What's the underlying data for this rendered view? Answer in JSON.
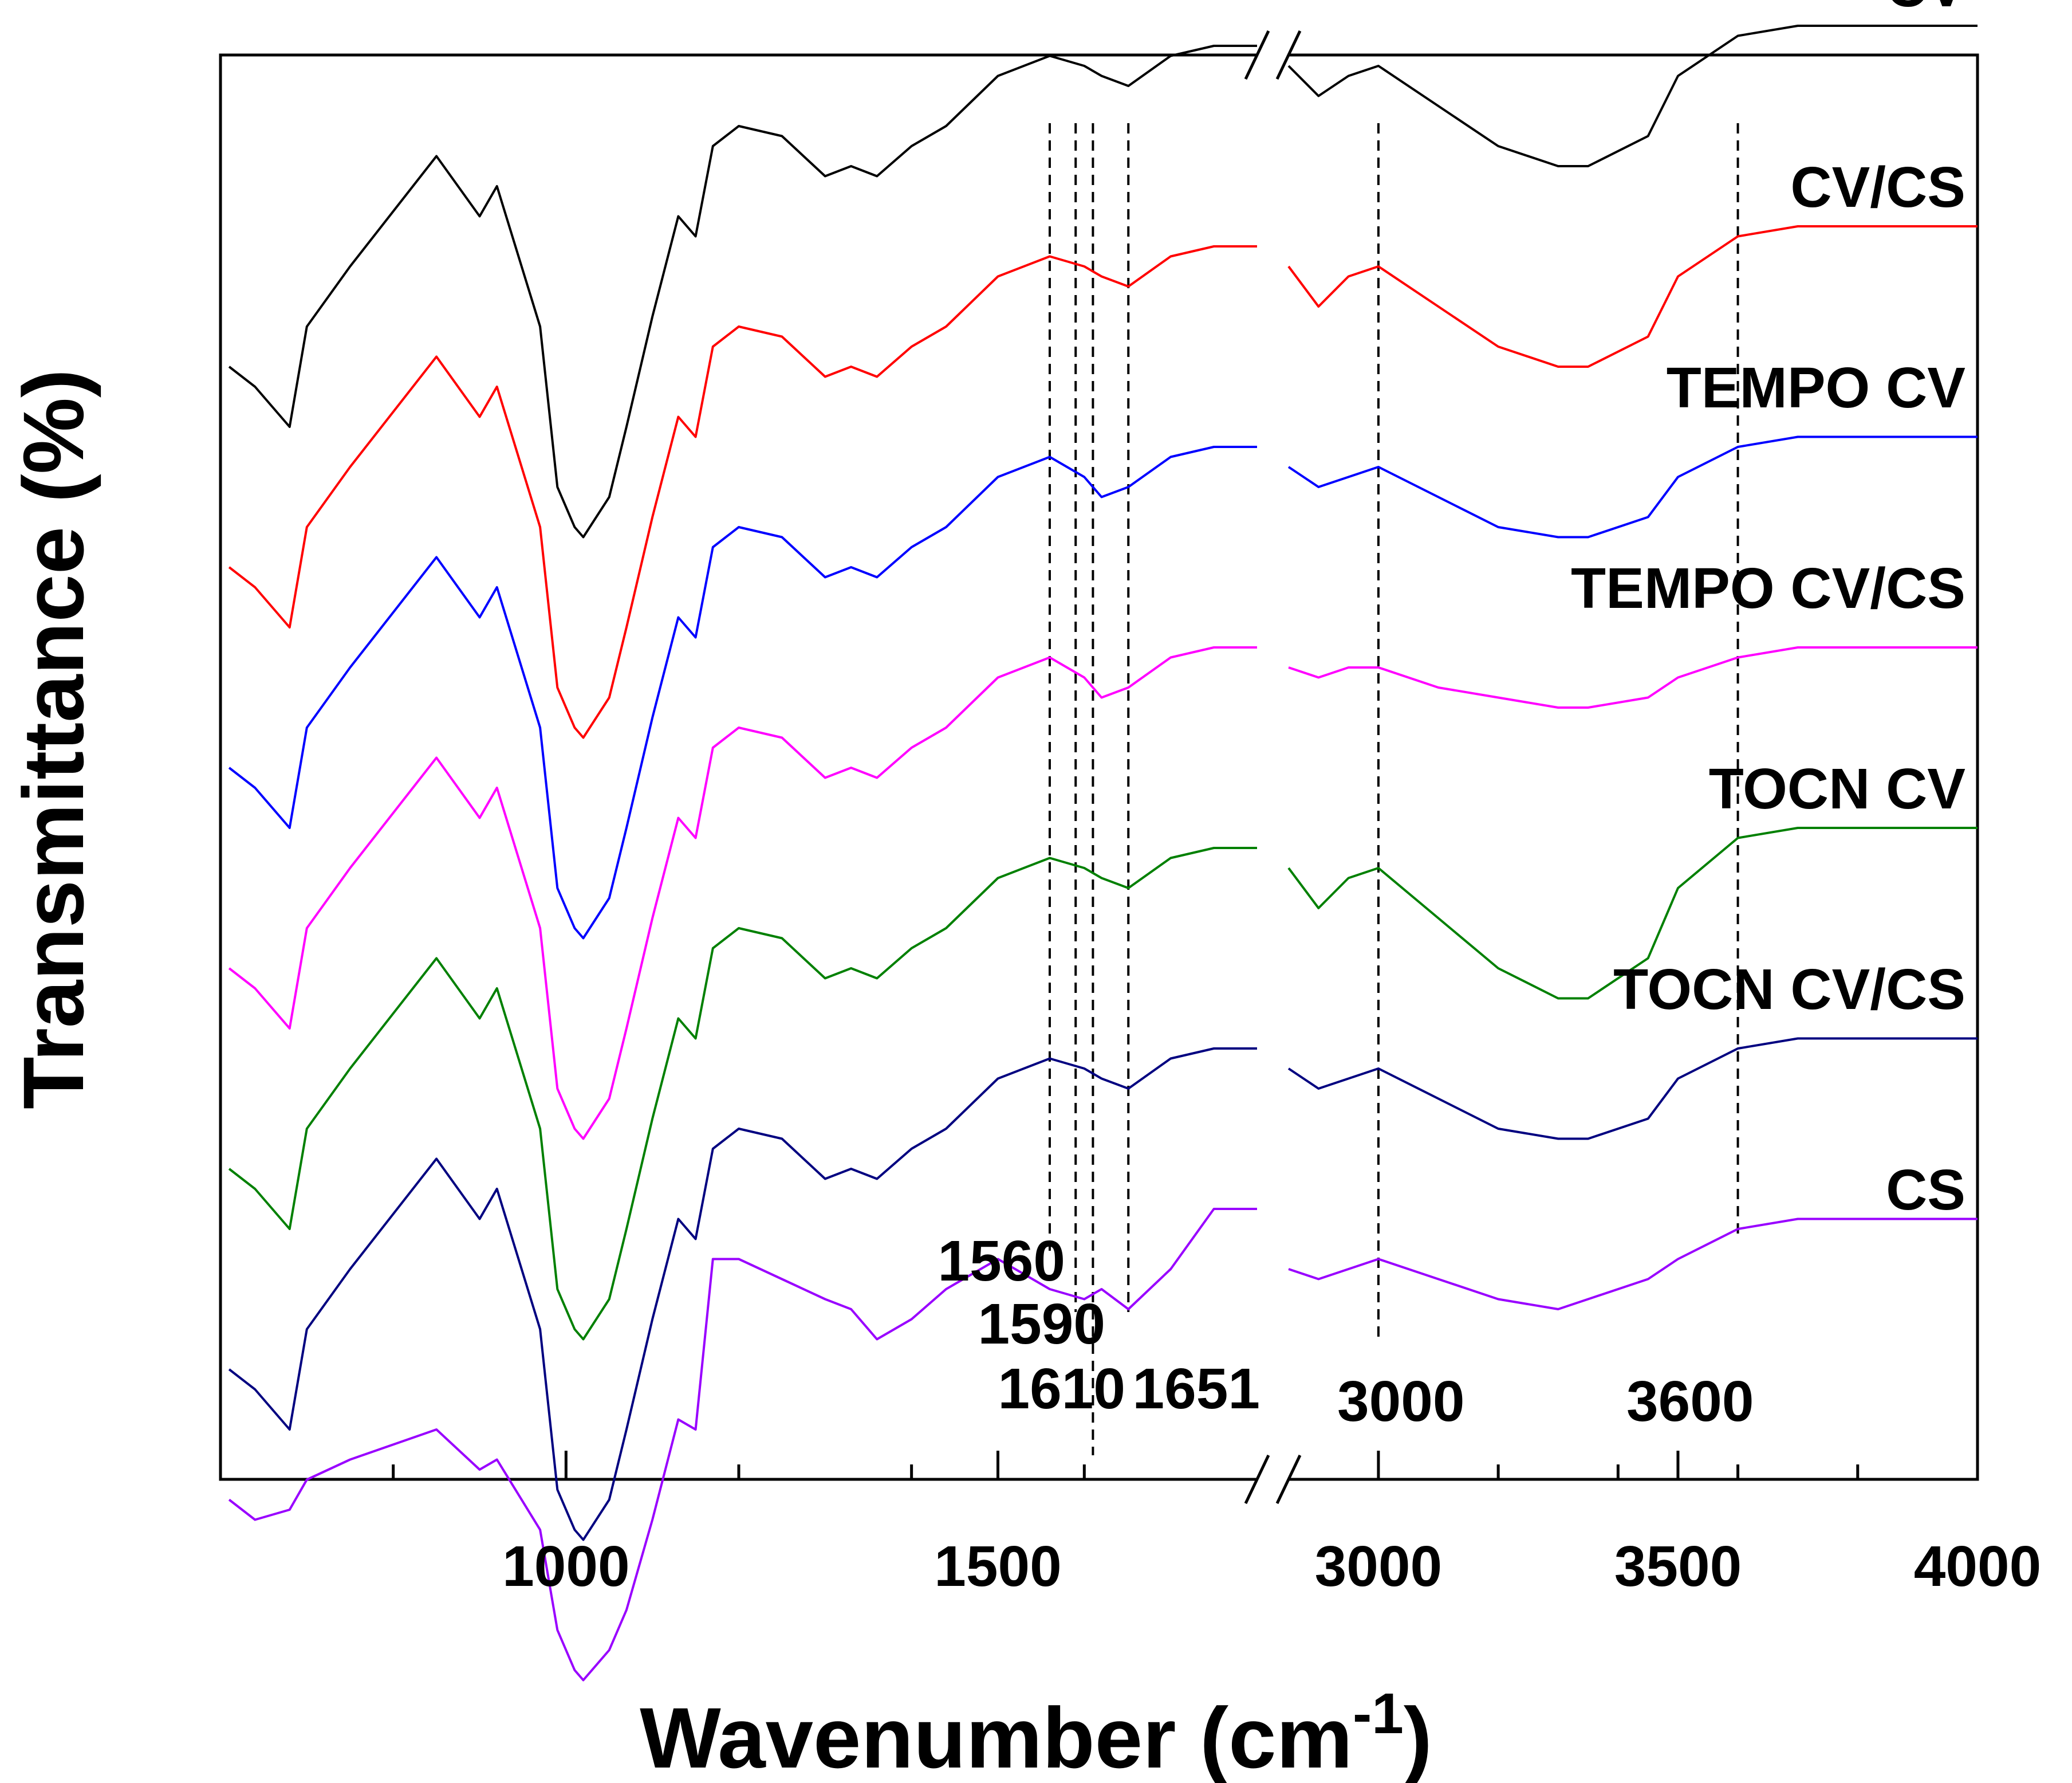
{
  "chart_data": {
    "type": "line",
    "title": "",
    "xlabel": "Wavenumber (cm",
    "xlabel_superscript": "-1",
    "xlabel_close": ")",
    "ylabel": "Transmittance (%)",
    "xlim": [
      600,
      4000
    ],
    "axis_break": [
      1800,
      2850
    ],
    "xticks": [
      1000,
      1500,
      3000,
      3500,
      4000
    ],
    "xtick_labels": [
      "1000",
      "1500",
      "3000",
      "3500",
      "4000"
    ],
    "yticks_shown": false,
    "legend": "labels placed at right end of each trace",
    "reference_lines": [
      1560,
      1590,
      1610,
      1651,
      3000,
      3600
    ],
    "reference_labels": [
      "1560",
      "1590",
      "1610",
      "1651",
      "3000",
      "3600"
    ],
    "series": [
      {
        "name": "CV",
        "color": "#000000",
        "offset": 0,
        "x": [
          610,
          640,
          680,
          700,
          750,
          850,
          900,
          920,
          970,
          990,
          1010,
          1020,
          1050,
          1070,
          1100,
          1130,
          1150,
          1170,
          1200,
          1250,
          1300,
          1330,
          1360,
          1400,
          1440,
          1500,
          1560,
          1600,
          1620,
          1651,
          1700,
          1750,
          1800,
          2850,
          2900,
          2950,
          3000,
          3100,
          3200,
          3300,
          3350,
          3450,
          3500,
          3600,
          3700,
          3800,
          3900,
          4000
        ],
        "y": [
          -2.0,
          -2.2,
          -2.6,
          -1.6,
          -1.0,
          0.1,
          -0.5,
          -0.2,
          -1.6,
          -3.2,
          -3.6,
          -3.7,
          -3.3,
          -2.6,
          -1.5,
          -0.5,
          -0.7,
          0.2,
          0.4,
          0.3,
          -0.1,
          0.0,
          -0.1,
          0.2,
          0.4,
          0.9,
          1.1,
          1.0,
          0.9,
          0.8,
          1.1,
          1.2,
          1.2,
          1.0,
          0.7,
          0.9,
          1.0,
          0.6,
          0.2,
          0.0,
          0.0,
          0.3,
          0.9,
          1.3,
          1.4,
          1.4,
          1.4,
          1.4
        ]
      },
      {
        "name": "CV/CS",
        "color": "#ff0000",
        "offset": -1,
        "x": [
          610,
          640,
          680,
          700,
          750,
          850,
          900,
          920,
          970,
          990,
          1010,
          1020,
          1050,
          1070,
          1100,
          1130,
          1150,
          1170,
          1200,
          1250,
          1300,
          1330,
          1360,
          1400,
          1440,
          1500,
          1560,
          1600,
          1620,
          1651,
          1700,
          1750,
          1800,
          2850,
          2900,
          2950,
          3000,
          3100,
          3200,
          3300,
          3350,
          3450,
          3500,
          3600,
          3700,
          3800,
          3900,
          4000
        ],
        "y": [
          -2.0,
          -2.2,
          -2.6,
          -1.6,
          -1.0,
          0.1,
          -0.5,
          -0.2,
          -1.6,
          -3.2,
          -3.6,
          -3.7,
          -3.3,
          -2.6,
          -1.5,
          -0.5,
          -0.7,
          0.2,
          0.4,
          0.3,
          -0.1,
          0.0,
          -0.1,
          0.2,
          0.4,
          0.9,
          1.1,
          1.0,
          0.9,
          0.8,
          1.1,
          1.2,
          1.2,
          1.0,
          0.6,
          0.9,
          1.0,
          0.6,
          0.2,
          0.0,
          0.0,
          0.3,
          0.9,
          1.3,
          1.4,
          1.4,
          1.4,
          1.4
        ]
      },
      {
        "name": "TEMPO CV",
        "color": "#0000ff",
        "offset": -2,
        "x": [
          610,
          640,
          680,
          700,
          750,
          850,
          900,
          920,
          970,
          990,
          1010,
          1020,
          1050,
          1070,
          1100,
          1130,
          1150,
          1170,
          1200,
          1250,
          1300,
          1330,
          1360,
          1400,
          1440,
          1500,
          1560,
          1600,
          1620,
          1651,
          1700,
          1750,
          1800,
          2850,
          2900,
          2950,
          3000,
          3100,
          3200,
          3300,
          3350,
          3450,
          3500,
          3600,
          3700,
          3800,
          3900,
          4000
        ],
        "y": [
          -2.0,
          -2.2,
          -2.6,
          -1.6,
          -1.0,
          0.1,
          -0.5,
          -0.2,
          -1.6,
          -3.2,
          -3.6,
          -3.7,
          -3.3,
          -2.6,
          -1.5,
          -0.5,
          -0.7,
          0.2,
          0.4,
          0.3,
          -0.1,
          0.0,
          -0.1,
          0.2,
          0.4,
          0.9,
          1.1,
          0.9,
          0.7,
          0.8,
          1.1,
          1.2,
          1.2,
          1.0,
          0.8,
          0.9,
          1.0,
          0.7,
          0.4,
          0.3,
          0.3,
          0.5,
          0.9,
          1.2,
          1.3,
          1.3,
          1.3,
          1.3
        ]
      },
      {
        "name": "TEMPO CV/CS",
        "color": "#ff00ff",
        "offset": -3,
        "x": [
          610,
          640,
          680,
          700,
          750,
          850,
          900,
          920,
          970,
          990,
          1010,
          1020,
          1050,
          1070,
          1100,
          1130,
          1150,
          1170,
          1200,
          1250,
          1300,
          1330,
          1360,
          1400,
          1440,
          1500,
          1560,
          1600,
          1620,
          1651,
          1700,
          1750,
          1800,
          2850,
          2900,
          2950,
          3000,
          3100,
          3200,
          3300,
          3350,
          3450,
          3500,
          3600,
          3700,
          3800,
          3900,
          4000
        ],
        "y": [
          -2.0,
          -2.2,
          -2.6,
          -1.6,
          -1.0,
          0.1,
          -0.5,
          -0.2,
          -1.6,
          -3.2,
          -3.6,
          -3.7,
          -3.3,
          -2.6,
          -1.5,
          -0.5,
          -0.7,
          0.2,
          0.4,
          0.3,
          -0.1,
          0.0,
          -0.1,
          0.2,
          0.4,
          0.9,
          1.1,
          0.9,
          0.7,
          0.8,
          1.1,
          1.2,
          1.2,
          1.0,
          0.9,
          1.0,
          1.0,
          0.8,
          0.7,
          0.6,
          0.6,
          0.7,
          0.9,
          1.1,
          1.2,
          1.2,
          1.2,
          1.2
        ]
      },
      {
        "name": "TOCN CV",
        "color": "#008000",
        "offset": -4,
        "x": [
          610,
          640,
          680,
          700,
          750,
          850,
          900,
          920,
          970,
          990,
          1010,
          1020,
          1050,
          1070,
          1100,
          1130,
          1150,
          1170,
          1200,
          1250,
          1300,
          1330,
          1360,
          1400,
          1440,
          1500,
          1560,
          1600,
          1620,
          1651,
          1700,
          1750,
          1800,
          2850,
          2900,
          2950,
          3000,
          3100,
          3200,
          3300,
          3350,
          3450,
          3500,
          3600,
          3700,
          3800,
          3900,
          4000
        ],
        "y": [
          -2.0,
          -2.2,
          -2.6,
          -1.6,
          -1.0,
          0.1,
          -0.5,
          -0.2,
          -1.6,
          -3.2,
          -3.6,
          -3.7,
          -3.3,
          -2.6,
          -1.5,
          -0.5,
          -0.7,
          0.2,
          0.4,
          0.3,
          -0.1,
          0.0,
          -0.1,
          0.2,
          0.4,
          0.9,
          1.1,
          1.0,
          0.9,
          0.8,
          1.1,
          1.2,
          1.2,
          1.0,
          0.6,
          0.9,
          1.0,
          0.5,
          0.0,
          -0.3,
          -0.3,
          0.1,
          0.8,
          1.3,
          1.4,
          1.4,
          1.4,
          1.4
        ]
      },
      {
        "name": "TOCN CV/CS",
        "color": "#000080",
        "offset": -5,
        "x": [
          610,
          640,
          680,
          700,
          750,
          850,
          900,
          920,
          970,
          990,
          1010,
          1020,
          1050,
          1070,
          1100,
          1130,
          1150,
          1170,
          1200,
          1250,
          1300,
          1330,
          1360,
          1400,
          1440,
          1500,
          1560,
          1600,
          1620,
          1651,
          1700,
          1750,
          1800,
          2850,
          2900,
          2950,
          3000,
          3100,
          3200,
          3300,
          3350,
          3450,
          3500,
          3600,
          3700,
          3800,
          3900,
          4000
        ],
        "y": [
          -2.0,
          -2.2,
          -2.6,
          -1.6,
          -1.0,
          0.1,
          -0.5,
          -0.2,
          -1.6,
          -3.2,
          -3.6,
          -3.7,
          -3.3,
          -2.6,
          -1.5,
          -0.5,
          -0.7,
          0.2,
          0.4,
          0.3,
          -0.1,
          0.0,
          -0.1,
          0.2,
          0.4,
          0.9,
          1.1,
          1.0,
          0.9,
          0.8,
          1.1,
          1.2,
          1.2,
          1.0,
          0.8,
          0.9,
          1.0,
          0.7,
          0.4,
          0.3,
          0.3,
          0.5,
          0.9,
          1.2,
          1.3,
          1.3,
          1.3,
          1.3
        ]
      },
      {
        "name": "CS",
        "color": "#9900ff",
        "offset": -6,
        "x": [
          610,
          640,
          680,
          700,
          750,
          850,
          900,
          920,
          970,
          990,
          1010,
          1020,
          1050,
          1070,
          1100,
          1130,
          1150,
          1170,
          1200,
          1250,
          1300,
          1330,
          1360,
          1400,
          1440,
          1500,
          1560,
          1600,
          1620,
          1651,
          1700,
          1750,
          1800,
          2850,
          2900,
          2950,
          3000,
          3100,
          3200,
          3300,
          3350,
          3450,
          3500,
          3600,
          3700,
          3800,
          3900,
          4000
        ],
        "y": [
          -1.3,
          -1.5,
          -1.4,
          -1.1,
          -0.9,
          -0.6,
          -1.0,
          -0.9,
          -1.6,
          -2.6,
          -3.0,
          -3.1,
          -2.8,
          -2.4,
          -1.5,
          -0.5,
          -0.6,
          1.1,
          1.1,
          0.9,
          0.7,
          0.6,
          0.3,
          0.5,
          0.8,
          1.1,
          0.8,
          0.7,
          0.8,
          0.6,
          1.0,
          1.6,
          1.6,
          1.0,
          0.9,
          1.0,
          1.1,
          0.9,
          0.7,
          0.6,
          0.7,
          0.9,
          1.1,
          1.4,
          1.5,
          1.5,
          1.5,
          1.5
        ]
      }
    ]
  }
}
